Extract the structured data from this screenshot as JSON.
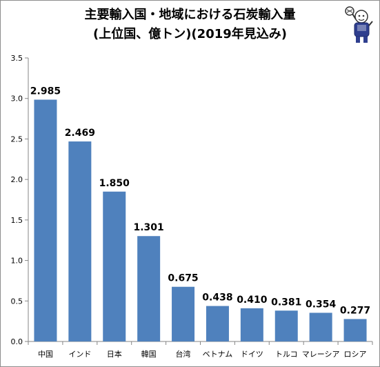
{
  "chart_data": {
    "type": "bar",
    "title": "主要輸入国・地域における石炭輸入量",
    "subtitle": "(上位国、億トン)(2019年見込み)",
    "categories": [
      "中国",
      "インド",
      "日本",
      "韓国",
      "台湾",
      "ベトナム",
      "ドイツ",
      "トルコ",
      "マレーシア",
      "ロシア"
    ],
    "values": [
      2.985,
      2.469,
      1.85,
      1.301,
      0.675,
      0.438,
      0.41,
      0.381,
      0.354,
      0.277
    ],
    "data_labels": [
      "2.985",
      "2.469",
      "1.850",
      "1.301",
      "0.675",
      "0.438",
      "0.410",
      "0.381",
      "0.354",
      "0.277"
    ],
    "xlabel": "",
    "ylabel": "",
    "ylim": [
      0,
      3.5
    ],
    "yticks": [
      "0.0",
      "0.5",
      "1.0",
      "1.5",
      "2.0",
      "2.5",
      "3.0",
      "3.5"
    ],
    "grid": false,
    "legend": "none",
    "bar_color": "#4f81bd"
  }
}
